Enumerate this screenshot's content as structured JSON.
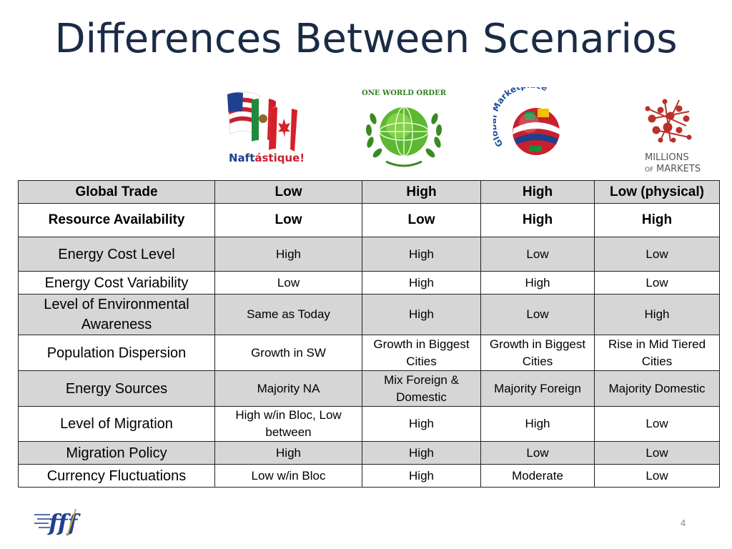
{
  "slide": {
    "title": "Differences Between Scenarios",
    "page_number": "4"
  },
  "logos": [
    {
      "name": "naftastique-logo",
      "text_primary": "Naftástique!"
    },
    {
      "name": "one-world-order-logo",
      "text_primary": "ONE WORLD ORDER"
    },
    {
      "name": "global-marketplace-logo",
      "text_primary": "Global Marketplace"
    },
    {
      "name": "millions-of-markets-logo",
      "text_primary": "MILLIONS",
      "text_small": "OF",
      "text_secondary": "MARKETS"
    }
  ],
  "table": {
    "rows": [
      {
        "label": "Global Trade",
        "cells": [
          "Low",
          "High",
          "High",
          "Low (physical)"
        ]
      },
      {
        "label": "Resource Availability",
        "cells": [
          "Low",
          "Low",
          "High",
          "High"
        ]
      },
      {
        "label": "Energy Cost Level",
        "cells": [
          "High",
          "High",
          "Low",
          "Low"
        ]
      },
      {
        "label": "Energy Cost Variability",
        "cells": [
          "Low",
          "High",
          "High",
          "Low"
        ]
      },
      {
        "label": "Level of Environmental Awareness",
        "cells": [
          "Same as Today",
          "High",
          "Low",
          "High"
        ]
      },
      {
        "label": "Population Dispersion",
        "cells": [
          "Growth in SW",
          "Growth in Biggest Cities",
          "Growth in Biggest Cities",
          "Rise in Mid Tiered Cities"
        ]
      },
      {
        "label": "Energy Sources",
        "cells": [
          "Majority NA",
          "Mix Foreign & Domestic",
          "Majority Foreign",
          "Majority Domestic"
        ]
      },
      {
        "label": "Level of Migration",
        "cells": [
          "High w/in Bloc, Low between",
          "High",
          "High",
          "Low"
        ]
      },
      {
        "label": "Migration Policy",
        "cells": [
          "High",
          "High",
          "Low",
          "Low"
        ]
      },
      {
        "label": "Currency Fluctuations",
        "cells": [
          "Low w/in Bloc",
          "High",
          "Moderate",
          "Low"
        ]
      }
    ]
  },
  "footer": {
    "logo_text": "fff"
  }
}
